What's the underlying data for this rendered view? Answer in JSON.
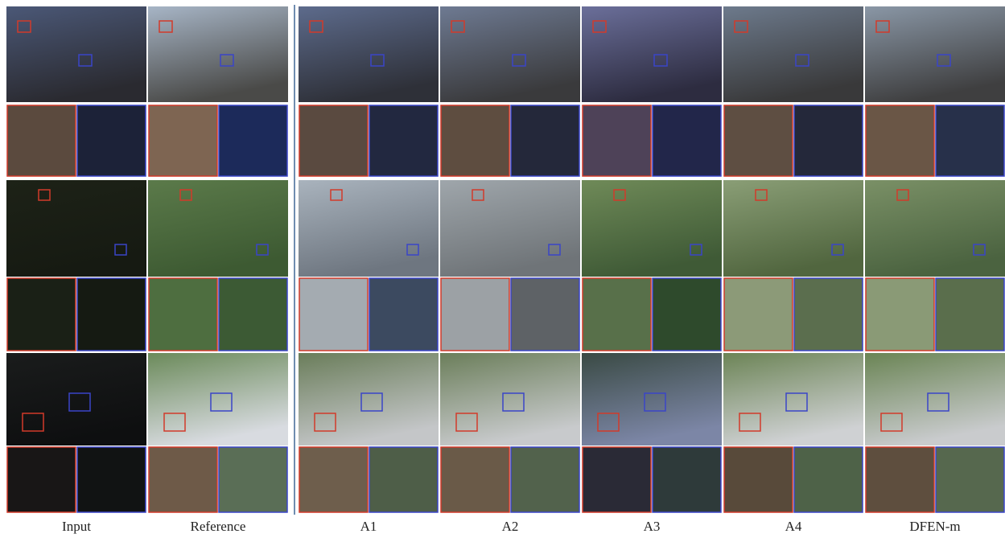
{
  "columns": [
    "Input",
    "Reference",
    "A1",
    "A2",
    "A3",
    "A4",
    "DFEN-m"
  ]
}
